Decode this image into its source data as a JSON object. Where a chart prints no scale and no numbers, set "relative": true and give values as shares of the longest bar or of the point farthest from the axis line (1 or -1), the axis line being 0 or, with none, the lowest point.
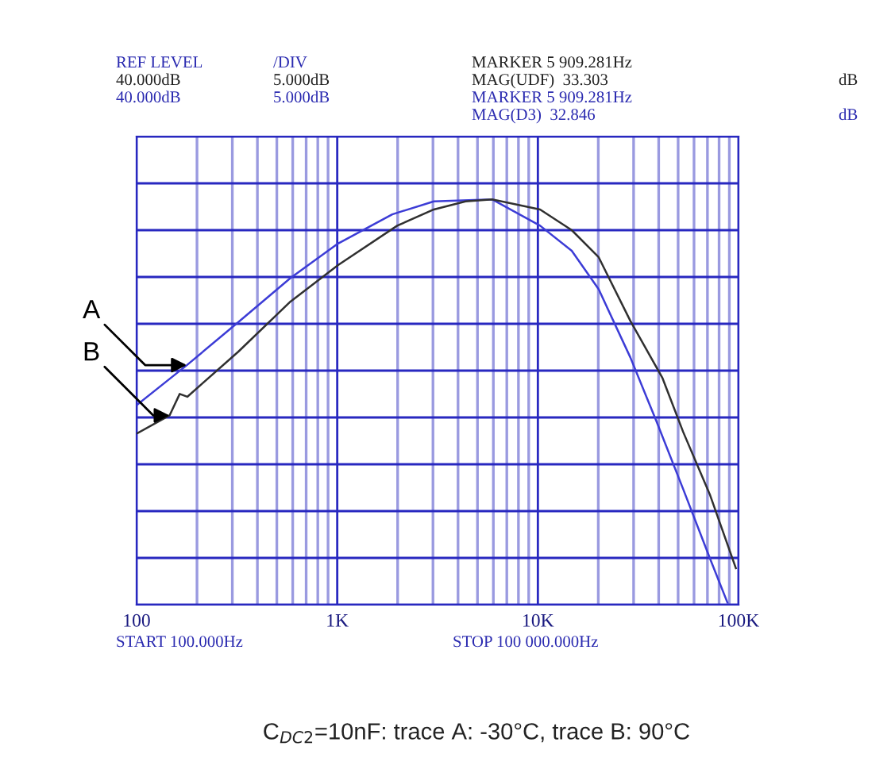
{
  "chart_data": {
    "type": "line",
    "annotations": [
      "REF LEVEL",
      "/DIV",
      "MARKER 5 909.281Hz",
      "40.000dB",
      "5.000dB",
      "MAG(UDF)  33.303",
      "dB",
      "40.000dB",
      "5.000dB",
      "MARKER 5 909.281Hz",
      "MAG(D3)  32.846",
      "dB",
      "START 100.000Hz",
      "STOP 100 000.000Hz",
      "C$_{DC2}$=10nF: trace A: -30°C, trace B: 90°C"
    ],
    "series": [
      {
        "name": "A",
        "color": "#3c3cd6",
        "x": [
          101,
          178,
          321,
          585,
          1010,
          1880,
          3030,
          5909,
          10260,
          14750,
          20100,
          28900,
          38800,
          52900,
          72200,
          88100
        ],
        "values": [
          0.494,
          0.591,
          0.697,
          0.806,
          0.891,
          0.963,
          0.995,
          1,
          0.935,
          0.873,
          0.778,
          0.61,
          0.455,
          0.286,
          0.113,
          0.005
        ]
      },
      {
        "name": "B",
        "color": "#303030",
        "x": [
          101,
          146,
          164,
          179,
          321,
          585,
          1010,
          1990,
          3030,
          4360,
          5909,
          10260,
          14750,
          20100,
          28900,
          41800,
          52900,
          72200,
          97000
        ],
        "values": [
          0.423,
          0.467,
          0.52,
          0.513,
          0.624,
          0.748,
          0.838,
          0.935,
          0.975,
          0.995,
          1,
          0.975,
          0.924,
          0.857,
          0.7,
          0.559,
          0.427,
          0.27,
          0.09
        ]
      }
    ],
    "log": "x",
    "xlim": [
      100,
      100000
    ],
    "xticks": [
      {
        "value": 100,
        "label": "100"
      },
      {
        "value": 200,
        "label": null
      },
      {
        "value": 300,
        "label": null
      },
      {
        "value": 400,
        "label": null
      },
      {
        "value": 500,
        "label": null
      },
      {
        "value": 600,
        "label": null
      },
      {
        "value": 700,
        "label": null
      },
      {
        "value": 800,
        "label": null
      },
      {
        "value": 900,
        "label": null
      },
      {
        "value": 1000,
        "label": "1K"
      },
      {
        "value": 2000,
        "label": null
      },
      {
        "value": 3000,
        "label": null
      },
      {
        "value": 4000,
        "label": null
      },
      {
        "value": 5000,
        "label": null
      },
      {
        "value": 6000,
        "label": null
      },
      {
        "value": 7000,
        "label": null
      },
      {
        "value": 8000,
        "label": null
      },
      {
        "value": 9000,
        "label": null
      },
      {
        "value": 10000,
        "label": "10K"
      },
      {
        "value": 20000,
        "label": null
      },
      {
        "value": 30000,
        "label": null
      },
      {
        "value": 40000,
        "label": null
      },
      {
        "value": 50000,
        "label": null
      },
      {
        "value": 60000,
        "label": null
      },
      {
        "value": 70000,
        "label": null
      },
      {
        "value": 80000,
        "label": null
      },
      {
        "value": 90000,
        "label": null
      },
      {
        "value": 100000,
        "label": "100K"
      }
    ],
    "relative": true,
    "tick_labels": "x",
    "grid": true,
    "legend": false,
    "marker": "none",
    "line_style": "solid"
  }
}
